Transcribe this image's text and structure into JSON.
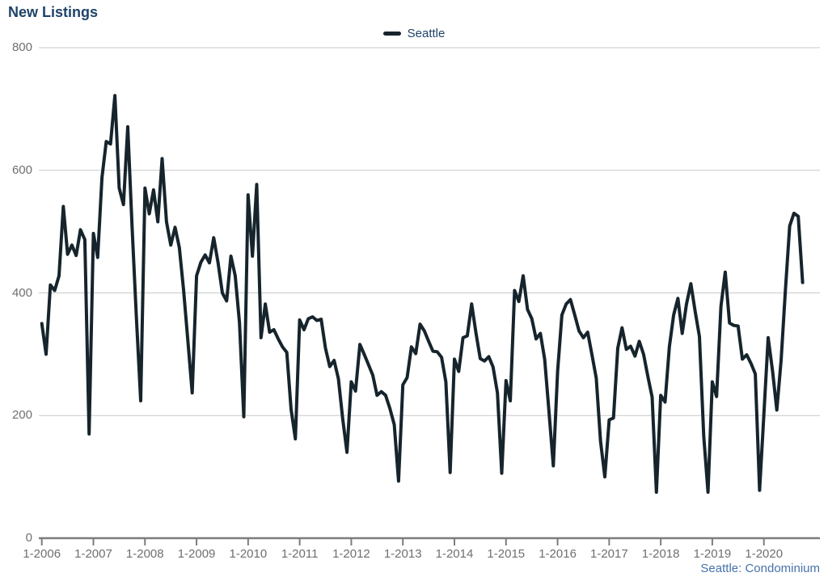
{
  "title": "New Listings",
  "legend": {
    "label": "Seattle"
  },
  "footnote": "Seattle: Condominium",
  "colors": {
    "title_text": "#1f4368",
    "legend_text": "#1f4368",
    "footnote_text": "#4673ab",
    "axis_label_text": "#6f6f6f",
    "gridline": "#c9c9c9",
    "axis_line": "#7d7d7d",
    "series_line": "#16242c"
  },
  "chart_data": {
    "type": "line",
    "title": "New Listings",
    "xlabel": "",
    "ylabel": "",
    "ylim": [
      0,
      800
    ],
    "y_ticks": [
      0,
      200,
      400,
      600,
      800
    ],
    "grid": "horizontal",
    "legend_position": "top-center",
    "footnote": "Seattle: Condominium",
    "x_unit": "month",
    "x_start": "2006-01",
    "x_end": "2020-10",
    "x_tick_labels": [
      "1-2006",
      "1-2007",
      "1-2008",
      "1-2009",
      "1-2010",
      "1-2011",
      "1-2012",
      "1-2013",
      "1-2014",
      "1-2015",
      "1-2016",
      "1-2017",
      "1-2018",
      "1-2019",
      "1-2020"
    ],
    "series": [
      {
        "name": "Seattle",
        "color": "#16242c",
        "values": [
          350,
          300,
          413,
          404,
          428,
          541,
          463,
          478,
          461,
          503,
          487,
          170,
          497,
          458,
          588,
          647,
          643,
          722,
          571,
          544,
          671,
          509,
          362,
          224,
          571,
          529,
          568,
          516,
          619,
          516,
          478,
          507,
          474,
          404,
          321,
          237,
          428,
          450,
          462,
          449,
          490,
          450,
          400,
          387,
          460,
          428,
          351,
          198,
          560,
          460,
          577,
          327,
          382,
          336,
          340,
          325,
          312,
          303,
          210,
          162,
          356,
          340,
          358,
          361,
          355,
          357,
          310,
          280,
          290,
          260,
          195,
          140,
          255,
          240,
          316,
          300,
          283,
          266,
          233,
          239,
          233,
          211,
          185,
          93,
          250,
          262,
          312,
          301,
          349,
          338,
          321,
          305,
          304,
          295,
          255,
          107,
          292,
          272,
          327,
          330,
          382,
          335,
          293,
          289,
          296,
          279,
          237,
          106,
          257,
          224,
          404,
          386,
          428,
          373,
          358,
          325,
          334,
          292,
          207,
          118,
          272,
          364,
          382,
          389,
          364,
          338,
          327,
          336,
          299,
          261,
          158,
          100,
          193,
          196,
          310,
          343,
          308,
          313,
          297,
          321,
          300,
          264,
          230,
          75,
          233,
          222,
          312,
          364,
          391,
          334,
          382,
          415,
          370,
          329,
          167,
          75,
          255,
          231,
          378,
          434,
          351,
          347,
          346,
          292,
          299,
          285,
          268,
          78,
          202,
          327,
          273,
          209,
          290,
          404,
          509,
          530,
          525,
          417
        ]
      }
    ]
  }
}
